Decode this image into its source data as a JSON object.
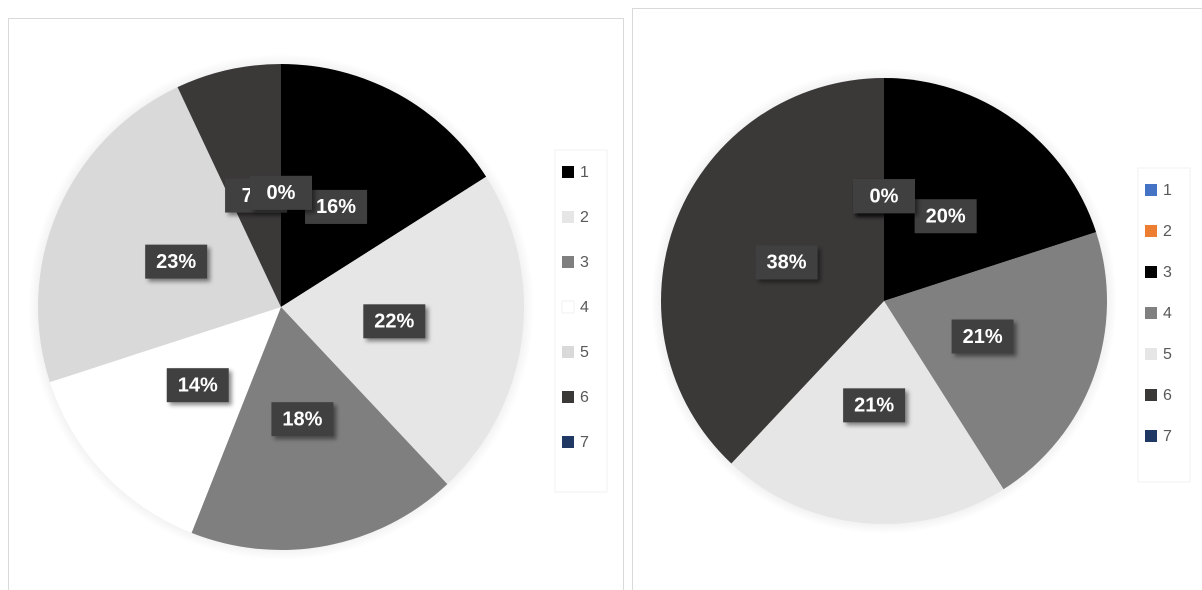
{
  "chart_data": [
    {
      "type": "pie",
      "categories": [
        "1",
        "2",
        "3",
        "4",
        "5",
        "6",
        "7"
      ],
      "values": [
        16,
        22,
        18,
        14,
        23,
        7,
        0
      ],
      "value_labels": [
        "16%",
        "22%",
        "18%",
        "14%",
        "23%",
        "7%",
        "0%"
      ],
      "colors": [
        "#000000",
        "#e6e6e6",
        "#7f7f7f",
        "#ffffff",
        "#d9d9d9",
        "#3b3838",
        "#1f3864"
      ],
      "legend": "right"
    },
    {
      "type": "pie",
      "categories": [
        "1",
        "2",
        "3",
        "4",
        "5",
        "6",
        "7"
      ],
      "values": [
        0,
        0,
        20,
        21,
        21,
        38,
        0
      ],
      "value_labels": [
        "0%",
        "0%",
        "20%",
        "21%",
        "21%",
        "38%",
        "0%"
      ],
      "colors": [
        "#4472c4",
        "#ed7d31",
        "#000000",
        "#808080",
        "#e6e6e6",
        "#3b3838",
        "#1f3864"
      ],
      "legend": "right"
    }
  ]
}
